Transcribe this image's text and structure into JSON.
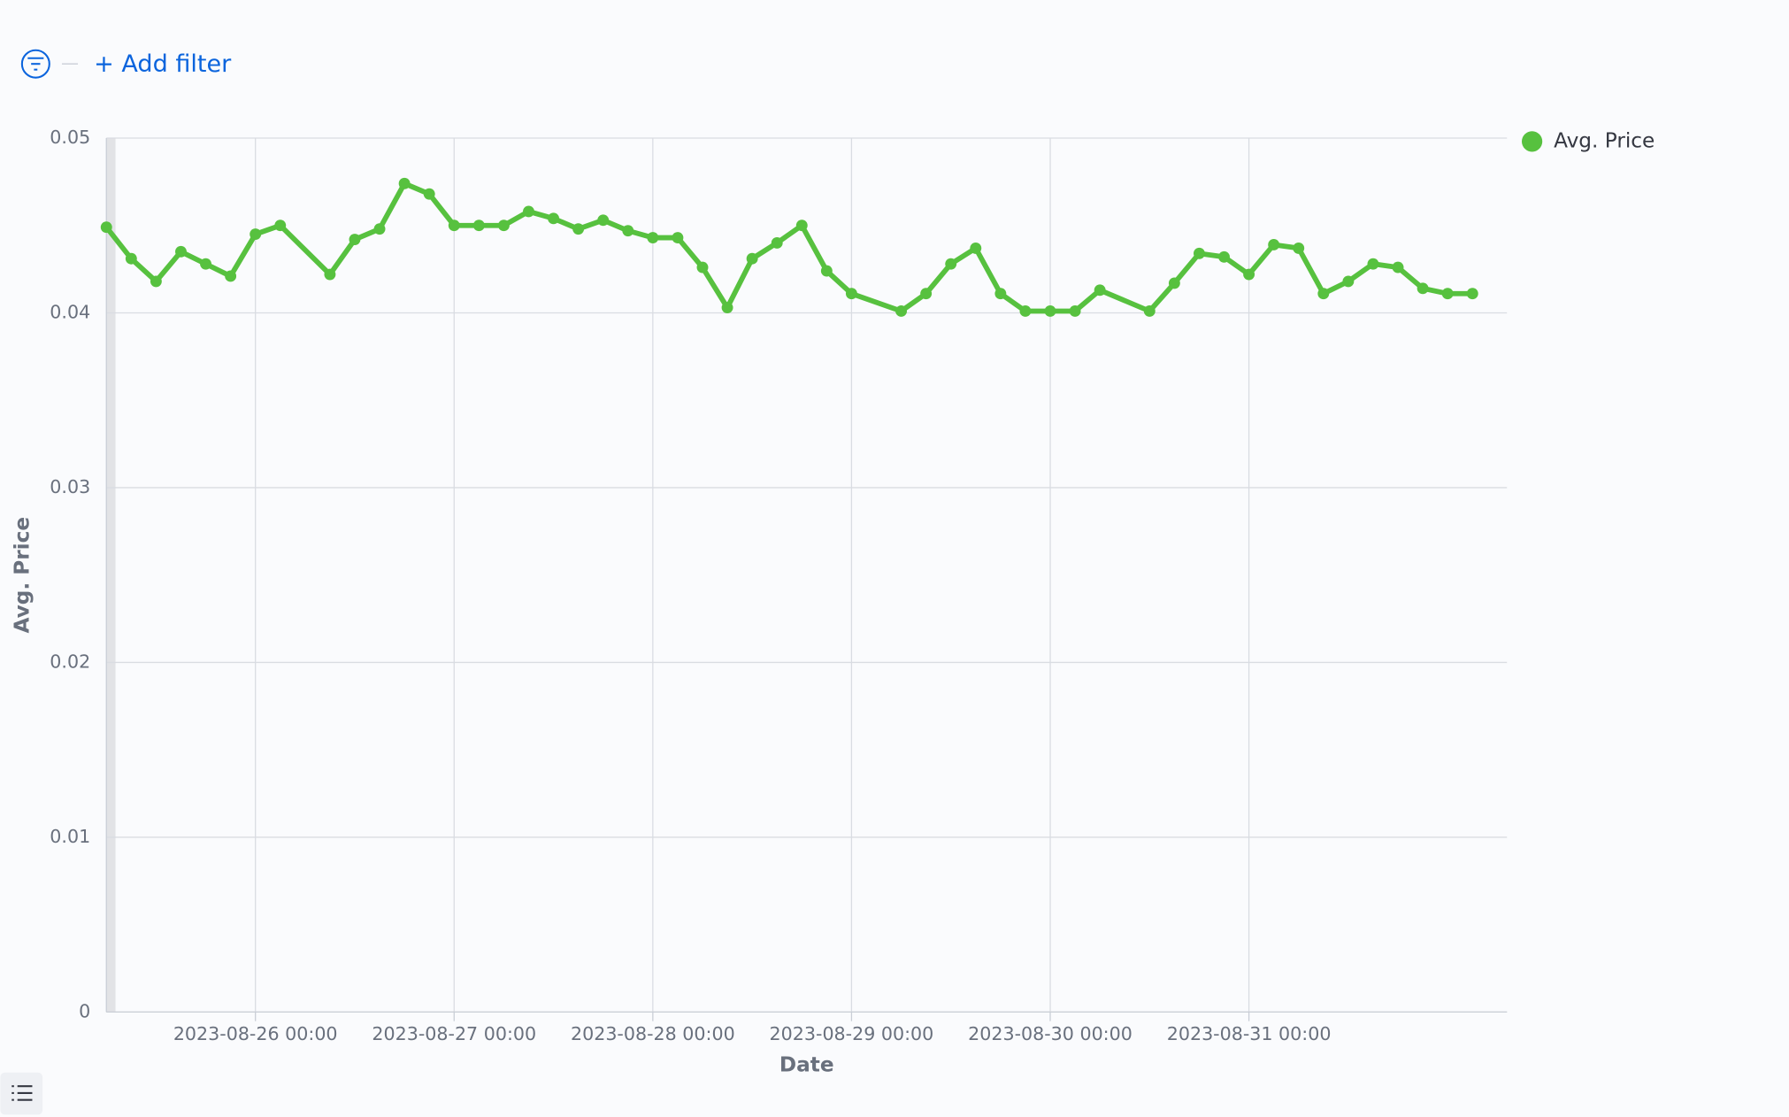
{
  "filter_bar": {
    "add_filter": "+ Add filter"
  },
  "chart_data": {
    "type": "line",
    "x_label": "Date",
    "y_label": "Avg. Price",
    "x": [
      "2023-08-25 06:00",
      "2023-08-25 09:00",
      "2023-08-25 12:00",
      "2023-08-25 15:00",
      "2023-08-25 18:00",
      "2023-08-25 21:00",
      "2023-08-26 00:00",
      "2023-08-26 03:00",
      "2023-08-26 09:00",
      "2023-08-26 12:00",
      "2023-08-26 15:00",
      "2023-08-26 18:00",
      "2023-08-26 21:00",
      "2023-08-27 00:00",
      "2023-08-27 03:00",
      "2023-08-27 06:00",
      "2023-08-27 09:00",
      "2023-08-27 12:00",
      "2023-08-27 15:00",
      "2023-08-27 18:00",
      "2023-08-27 21:00",
      "2023-08-28 00:00",
      "2023-08-28 03:00",
      "2023-08-28 06:00",
      "2023-08-28 09:00",
      "2023-08-28 12:00",
      "2023-08-28 15:00",
      "2023-08-28 18:00",
      "2023-08-28 21:00",
      "2023-08-29 00:00",
      "2023-08-29 06:00",
      "2023-08-29 09:00",
      "2023-08-29 12:00",
      "2023-08-29 15:00",
      "2023-08-29 18:00",
      "2023-08-29 21:00",
      "2023-08-30 00:00",
      "2023-08-30 03:00",
      "2023-08-30 06:00",
      "2023-08-30 12:00",
      "2023-08-30 15:00",
      "2023-08-30 18:00",
      "2023-08-30 21:00",
      "2023-08-31 00:00",
      "2023-08-31 03:00",
      "2023-08-31 06:00",
      "2023-08-31 09:00",
      "2023-08-31 12:00",
      "2023-08-31 15:00",
      "2023-08-31 18:00",
      "2023-08-31 21:00",
      "2023-09-01 00:00",
      "2023-09-01 03:00"
    ],
    "series": [
      {
        "name": "Avg. Price",
        "color": "#57c13f",
        "values": [
          0.0449,
          0.0431,
          0.0418,
          0.0435,
          0.0428,
          0.0421,
          0.0445,
          0.045,
          0.0422,
          0.0442,
          0.0448,
          0.0474,
          0.0468,
          0.045,
          0.045,
          0.045,
          0.0458,
          0.0454,
          0.0448,
          0.0453,
          0.0447,
          0.0443,
          0.0443,
          0.0426,
          0.0403,
          0.0431,
          0.044,
          0.045,
          0.0424,
          0.0411,
          0.0401,
          0.0411,
          0.0428,
          0.0437,
          0.0411,
          0.0401,
          0.0401,
          0.0401,
          0.0413,
          0.0401,
          0.0417,
          0.0434,
          0.0432,
          0.0422,
          0.0439,
          0.0437,
          0.0411,
          0.0418,
          0.0428,
          0.0426,
          0.0414,
          0.0411,
          0.0411
        ]
      }
    ],
    "xlim": [
      "2023-08-25 06:00",
      "2023-09-01 07:10"
    ],
    "xticks": [
      "2023-08-26 00:00",
      "2023-08-27 00:00",
      "2023-08-28 00:00",
      "2023-08-29 00:00",
      "2023-08-30 00:00",
      "2023-08-31 00:00"
    ],
    "ylim": [
      0,
      0.05
    ],
    "yticks": [
      0,
      0.01,
      0.02,
      0.03,
      0.04,
      0.05
    ],
    "grid": true,
    "legend": "top-right"
  }
}
